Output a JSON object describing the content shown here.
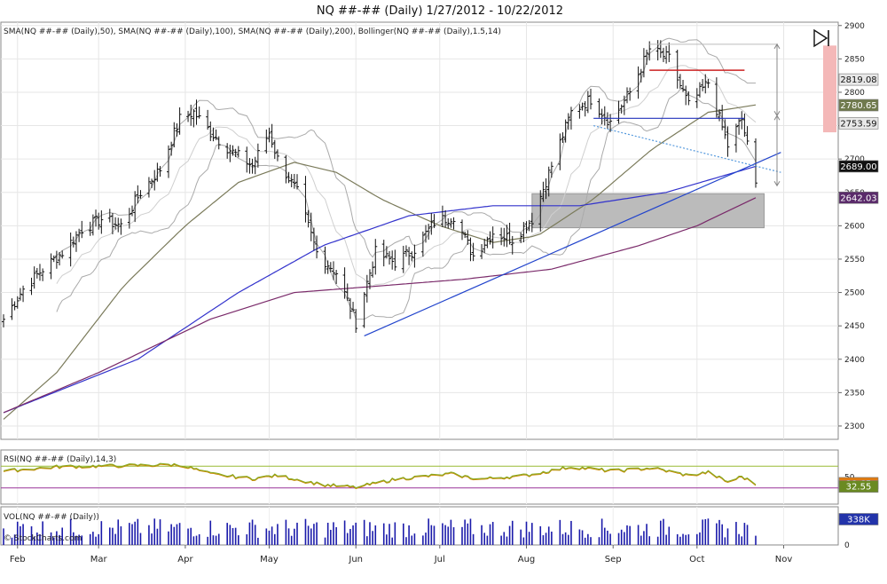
{
  "title": "NQ ##-## (Daily)  1/27/2012 - 10/22/2012",
  "price_indicator_label": "SMA(NQ ##-## (Daily),50), SMA(NQ ##-## (Daily),100), SMA(NQ ##-## (Daily),200), Bollinger(NQ ##-## (Daily),1.5,14)",
  "rsi_label": "RSI(NQ ##-## (Daily),14,3)",
  "vol_label": "VOL(NQ ##-## (Daily))",
  "watermark": "© StockCharts.com",
  "colors": {
    "price_bar": "#111111",
    "sma50": "#7a7a5a",
    "sma100": "#3333cc",
    "sma200": "#7a2a6a",
    "bollinger": "#aaaaaa",
    "trendline": "#2244cc",
    "dotted_line": "#5599dd",
    "resistance": "#cc2222",
    "support_line": "#2233bb",
    "gray_zone": "#bbbbbb",
    "pink_zone": "#f4b8b8",
    "rsi_line": "#88aa22",
    "rsi_signal": "#cc8800",
    "volume": "#1a1aaa"
  },
  "chart_data": [
    {
      "type": "ohlc",
      "panel": "price",
      "x_range": [
        "2012-01-27",
        "2012-10-22"
      ],
      "ylim": [
        2280,
        2905
      ],
      "y_ticks": [
        2300,
        2350,
        2400,
        2450,
        2500,
        2550,
        2600,
        2650,
        2700,
        2750,
        2800,
        2850,
        2900
      ],
      "month_labels": [
        "Feb",
        "Mar",
        "Apr",
        "May",
        "Jun",
        "Jul",
        "Aug",
        "Sep",
        "Oct",
        "Nov"
      ],
      "close_anchors": [
        [
          "2012-01-27",
          2460
        ],
        [
          "2012-02-03",
          2505
        ],
        [
          "2012-02-10",
          2535
        ],
        [
          "2012-02-17",
          2560
        ],
        [
          "2012-02-24",
          2595
        ],
        [
          "2012-03-02",
          2610
        ],
        [
          "2012-03-09",
          2600
        ],
        [
          "2012-03-16",
          2650
        ],
        [
          "2012-03-23",
          2685
        ],
        [
          "2012-03-30",
          2760
        ],
        [
          "2012-04-04",
          2770
        ],
        [
          "2012-04-10",
          2740
        ],
        [
          "2012-04-18",
          2710
        ],
        [
          "2012-04-25",
          2690
        ],
        [
          "2012-05-01",
          2740
        ],
        [
          "2012-05-04",
          2700
        ],
        [
          "2012-05-11",
          2650
        ],
        [
          "2012-05-18",
          2560
        ],
        [
          "2012-05-25",
          2530
        ],
        [
          "2012-06-01",
          2455
        ],
        [
          "2012-06-08",
          2560
        ],
        [
          "2012-06-15",
          2545
        ],
        [
          "2012-06-22",
          2565
        ],
        [
          "2012-06-29",
          2605
        ],
        [
          "2012-07-06",
          2615
        ],
        [
          "2012-07-13",
          2555
        ],
        [
          "2012-07-20",
          2590
        ],
        [
          "2012-07-27",
          2580
        ],
        [
          "2012-08-03",
          2610
        ],
        [
          "2012-08-10",
          2690
        ],
        [
          "2012-08-17",
          2770
        ],
        [
          "2012-08-24",
          2790
        ],
        [
          "2012-08-31",
          2755
        ],
        [
          "2012-09-07",
          2800
        ],
        [
          "2012-09-14",
          2865
        ],
        [
          "2012-09-21",
          2850
        ],
        [
          "2012-09-28",
          2780
        ],
        [
          "2012-10-05",
          2815
        ],
        [
          "2012-10-12",
          2720
        ],
        [
          "2012-10-17",
          2760
        ],
        [
          "2012-10-22",
          2660
        ]
      ],
      "series": [
        {
          "name": "SMA(NQ ##-## (Daily),50)",
          "last": 2780.65,
          "anchors": [
            [
              "2012-01-27",
              2310
            ],
            [
              "2012-02-15",
              2380
            ],
            [
              "2012-03-10",
              2510
            ],
            [
              "2012-04-01",
              2600
            ],
            [
              "2012-04-20",
              2665
            ],
            [
              "2012-05-10",
              2695
            ],
            [
              "2012-05-25",
              2680
            ],
            [
              "2012-06-10",
              2640
            ],
            [
              "2012-07-01",
              2600
            ],
            [
              "2012-07-20",
              2575
            ],
            [
              "2012-08-05",
              2585
            ],
            [
              "2012-08-25",
              2640
            ],
            [
              "2012-09-15",
              2715
            ],
            [
              "2012-10-05",
              2770
            ],
            [
              "2012-10-22",
              2781
            ]
          ]
        },
        {
          "name": "SMA(NQ ##-## (Daily),100)",
          "last": 2689.0,
          "anchors": [
            [
              "2012-01-27",
              2320
            ],
            [
              "2012-03-15",
              2400
            ],
            [
              "2012-04-20",
              2500
            ],
            [
              "2012-05-20",
              2570
            ],
            [
              "2012-06-20",
              2615
            ],
            [
              "2012-07-20",
              2630
            ],
            [
              "2012-08-20",
              2630
            ],
            [
              "2012-09-20",
              2650
            ],
            [
              "2012-10-22",
              2689
            ]
          ]
        },
        {
          "name": "SMA(NQ ##-## (Daily),200)",
          "last": 2642.03,
          "anchors": [
            [
              "2012-01-27",
              2320
            ],
            [
              "2012-03-01",
              2380
            ],
            [
              "2012-04-10",
              2460
            ],
            [
              "2012-05-10",
              2500
            ],
            [
              "2012-06-10",
              2510
            ],
            [
              "2012-07-10",
              2520
            ],
            [
              "2012-08-10",
              2535
            ],
            [
              "2012-09-10",
              2570
            ],
            [
              "2012-10-01",
              2600
            ],
            [
              "2012-10-22",
              2642
            ]
          ]
        }
      ],
      "price_tags": [
        {
          "value": "2819.08",
          "y": 2819.08,
          "style": "gray"
        },
        {
          "value": "2780.65",
          "y": 2780.65,
          "style": "olive"
        },
        {
          "value": "2753.59",
          "y": 2753.59,
          "style": "gray"
        },
        {
          "value": "2689.00",
          "y": 2689.0,
          "style": "black"
        },
        {
          "value": "2642.03",
          "y": 2642.03,
          "style": "purple"
        }
      ],
      "annotations": {
        "rising_trendline": [
          [
            "2012-06-04",
            2435
          ],
          [
            "2012-10-31",
            2710
          ]
        ],
        "dotted_line": [
          [
            "2012-08-25",
            2750
          ],
          [
            "2012-10-31",
            2680
          ]
        ],
        "resistance_line": [
          [
            "2012-09-14",
            2833
          ],
          [
            "2012-10-18",
            2833
          ]
        ],
        "support_line": [
          [
            "2012-08-25",
            2761
          ],
          [
            "2012-10-18",
            2761
          ]
        ],
        "gray_zone": {
          "x": [
            "2012-08-03",
            "2012-10-25"
          ],
          "y": [
            2597,
            2648
          ]
        },
        "pink_zone": {
          "y": [
            2740,
            2870
          ]
        }
      }
    },
    {
      "type": "line",
      "panel": "rsi",
      "title": "RSI(NQ ##-## (Daily),14,3)",
      "ylim": [
        0,
        100
      ],
      "levels": [
        30,
        70
      ],
      "y_ticks": [
        50
      ],
      "last_values": [
        "38.65",
        "32.55"
      ],
      "anchors": [
        [
          "2012-01-27",
          60
        ],
        [
          "2012-02-15",
          68
        ],
        [
          "2012-03-10",
          70
        ],
        [
          "2012-03-30",
          72
        ],
        [
          "2012-04-10",
          55
        ],
        [
          "2012-04-25",
          46
        ],
        [
          "2012-05-04",
          52
        ],
        [
          "2012-05-20",
          35
        ],
        [
          "2012-06-01",
          30
        ],
        [
          "2012-06-15",
          45
        ],
        [
          "2012-07-05",
          55
        ],
        [
          "2012-07-15",
          45
        ],
        [
          "2012-08-01",
          52
        ],
        [
          "2012-08-17",
          68
        ],
        [
          "2012-09-01",
          60
        ],
        [
          "2012-09-15",
          66
        ],
        [
          "2012-09-28",
          52
        ],
        [
          "2012-10-05",
          58
        ],
        [
          "2012-10-12",
          40
        ],
        [
          "2012-10-17",
          50
        ],
        [
          "2012-10-22",
          36
        ]
      ]
    },
    {
      "type": "bar",
      "panel": "volume",
      "title": "VOL(NQ ##-## (Daily))",
      "y_ticks": [
        0
      ],
      "last_value": "338K"
    }
  ]
}
